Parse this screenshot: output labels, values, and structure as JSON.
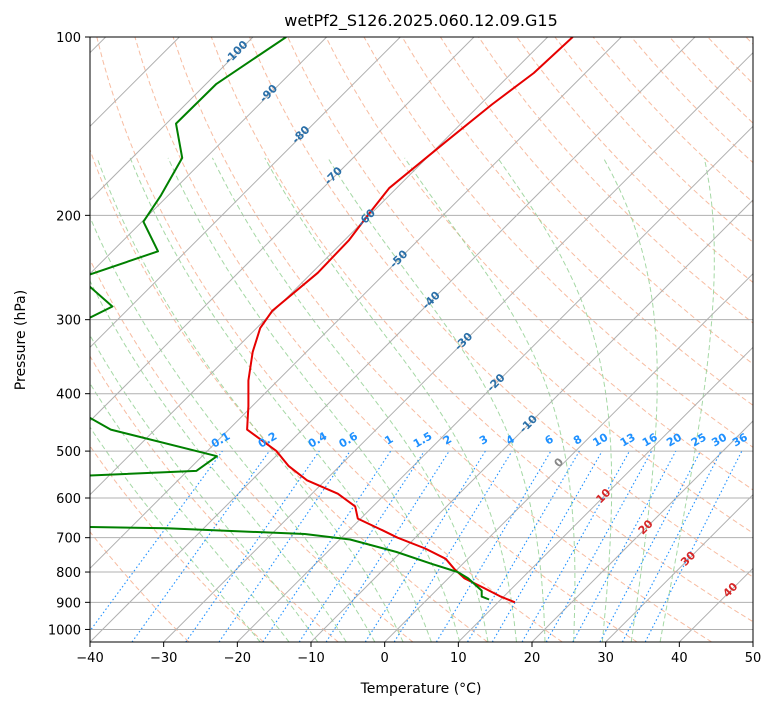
{
  "chart_data": {
    "type": "line",
    "title": "wetPf2_S126.2025.060.12.09.G15",
    "xlabel": "Temperature (°C)",
    "ylabel": "Pressure (hPa)",
    "xlim": [
      -40,
      50
    ],
    "ylim": [
      1050,
      100
    ],
    "y_scale": "log",
    "grid": true,
    "x_ticks": [
      -40,
      -30,
      -20,
      -10,
      0,
      10,
      20,
      30,
      40,
      50
    ],
    "y_ticks": [
      100,
      200,
      300,
      400,
      500,
      600,
      700,
      800,
      900,
      1000
    ],
    "skew": true,
    "isotherm_labels": [
      -100,
      -90,
      -80,
      -70,
      -60,
      -50,
      -40,
      -30,
      -20,
      -10,
      0,
      10,
      20,
      30,
      40
    ],
    "mixing_ratio_labels": [
      "0.1",
      "0.2",
      "0.4",
      "0.6",
      "1",
      "1.5",
      "2",
      "3",
      "4",
      "6",
      "8",
      "10",
      "13",
      "16",
      "20",
      "25",
      "30",
      "36"
    ],
    "colors": {
      "temperature": "#e60000",
      "dewpoint": "#008000",
      "isotherm_label_cold": "#2a6fa8",
      "isotherm_label_warm": "#d62728",
      "isotherm_zero": "#888888",
      "mixing_ratio": "#1e90ff",
      "dry_adiabat": "#f4a582",
      "moist_adiabat": "#8fce8f",
      "grid": "#b0b0b0"
    },
    "series": [
      {
        "key": "temperature",
        "points": [
          [
            -56.6,
            100
          ],
          [
            -57.0,
            115
          ],
          [
            -58.4,
            130
          ],
          [
            -59.6,
            150
          ],
          [
            -61.0,
            180
          ],
          [
            -60.2,
            200
          ],
          [
            -59.4,
            220
          ],
          [
            -59.2,
            250
          ],
          [
            -60.2,
            290
          ],
          [
            -59.5,
            310
          ],
          [
            -57.3,
            340
          ],
          [
            -54.0,
            380
          ],
          [
            -50.5,
            420
          ],
          [
            -47.5,
            460
          ],
          [
            -40.6,
            500
          ],
          [
            -36.9,
            530
          ],
          [
            -32.5,
            560
          ],
          [
            -26.5,
            590
          ],
          [
            -22.4,
            620
          ],
          [
            -20.4,
            650
          ],
          [
            -15.5,
            680
          ],
          [
            -12.4,
            700
          ],
          [
            -7.2,
            730
          ],
          [
            -3.0,
            760
          ],
          [
            -0.5,
            790
          ],
          [
            2.2,
            820
          ],
          [
            6.0,
            850
          ],
          [
            9.6,
            880
          ],
          [
            12.3,
            900
          ]
        ]
      },
      {
        "key": "dewpoint",
        "points": [
          [
            -95.5,
            100
          ],
          [
            -98.6,
            120
          ],
          [
            -98.7,
            140
          ],
          [
            -93.2,
            160
          ],
          [
            -91.0,
            185
          ],
          [
            -89.8,
            205
          ],
          [
            -83.8,
            230
          ],
          [
            -90.8,
            255
          ],
          [
            -82.5,
            285
          ],
          [
            -87.7,
            330
          ],
          [
            -80.1,
            370
          ],
          [
            -74.8,
            420
          ],
          [
            -66.0,
            460
          ],
          [
            -48.0,
            510
          ],
          [
            -48.8,
            540
          ],
          [
            -90.0,
            570
          ],
          [
            -95.0,
            600
          ],
          [
            -75.5,
            640
          ],
          [
            -92.0,
            660
          ],
          [
            -45.0,
            675
          ],
          [
            -25.5,
            690
          ],
          [
            -18.6,
            705
          ],
          [
            -10.6,
            740
          ],
          [
            -4.2,
            775
          ],
          [
            0.4,
            800
          ],
          [
            2.7,
            820
          ],
          [
            6.2,
            860
          ],
          [
            7.0,
            880
          ],
          [
            8.4,
            890
          ]
        ]
      }
    ]
  }
}
